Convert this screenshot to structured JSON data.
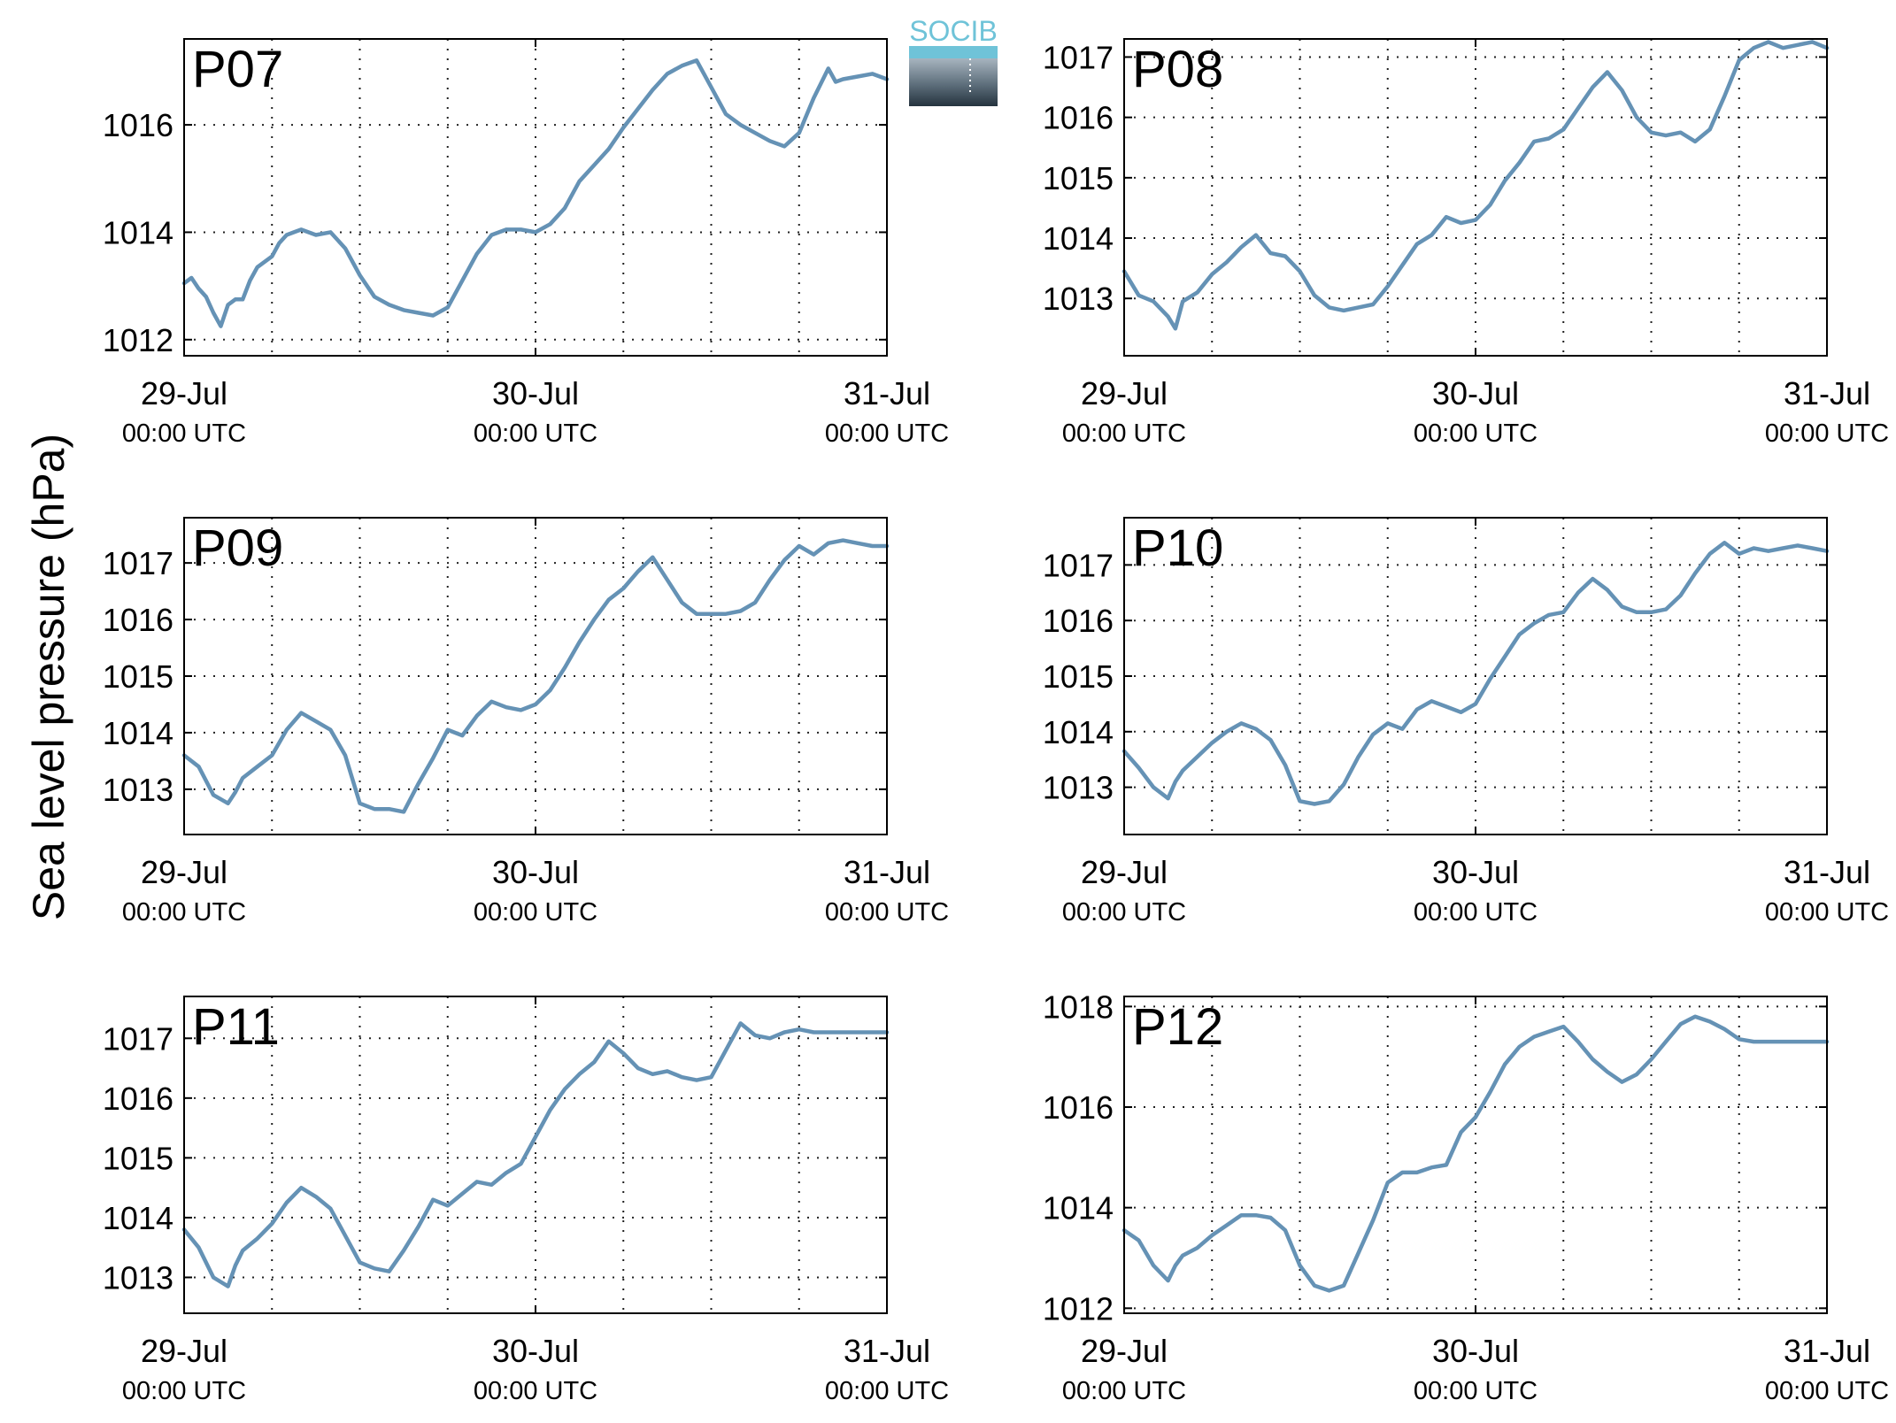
{
  "figure": {
    "ylabel": "Sea level pressure (hPa)",
    "line_color": "#6592b5",
    "station_label_color": "#ff0000"
  },
  "logo": {
    "text": "SOCIB",
    "text_color": "#6fc3d8"
  },
  "x_ticks": [
    {
      "date": "29-Jul",
      "time": "00:00 UTC",
      "hour": 0
    },
    {
      "date": "30-Jul",
      "time": "00:00 UTC",
      "hour": 24
    },
    {
      "date": "31-Jul",
      "time": "00:00 UTC",
      "hour": 48
    }
  ],
  "chart_data": [
    {
      "type": "line",
      "station": "P07",
      "xlim": [
        0,
        48
      ],
      "ylim": [
        1011.7,
        1017.6
      ],
      "yticks": [
        1012,
        1014,
        1016
      ],
      "x_minor_grid": [
        6,
        12,
        18,
        30,
        36,
        42
      ],
      "grid": true,
      "x": [
        0,
        0.5,
        1,
        1.5,
        2,
        2.5,
        3,
        3.5,
        4,
        4.5,
        5,
        5.5,
        6,
        6.5,
        7,
        7.5,
        8,
        9,
        10,
        11,
        12,
        13,
        14,
        15,
        16,
        17,
        18,
        19,
        20,
        21,
        22,
        23,
        24,
        25,
        26,
        27,
        28,
        29,
        30,
        31,
        32,
        33,
        34,
        35,
        36,
        37,
        38,
        39,
        40,
        41,
        42,
        43,
        44,
        44.5,
        45,
        46,
        47,
        48
      ],
      "values": [
        1013.05,
        1013.15,
        1012.95,
        1012.8,
        1012.5,
        1012.25,
        1012.65,
        1012.75,
        1012.75,
        1013.1,
        1013.35,
        1013.45,
        1013.55,
        1013.8,
        1013.95,
        1014.0,
        1014.05,
        1013.95,
        1014.0,
        1013.7,
        1013.2,
        1012.8,
        1012.65,
        1012.55,
        1012.5,
        1012.45,
        1012.6,
        1013.1,
        1013.6,
        1013.95,
        1014.05,
        1014.05,
        1014.0,
        1014.15,
        1014.45,
        1014.95,
        1015.25,
        1015.55,
        1015.95,
        1016.3,
        1016.65,
        1016.95,
        1017.1,
        1017.2,
        1016.7,
        1016.2,
        1016.0,
        1015.85,
        1015.7,
        1015.6,
        1015.85,
        1016.5,
        1017.05,
        1016.8,
        1016.85,
        1016.9,
        1016.95,
        1016.85
      ]
    },
    {
      "type": "line",
      "station": "P08",
      "xlim": [
        0,
        48
      ],
      "ylim": [
        1012.05,
        1017.3
      ],
      "yticks": [
        1013,
        1014,
        1015,
        1016,
        1017
      ],
      "x_minor_grid": [
        6,
        12,
        18,
        30,
        36,
        42
      ],
      "grid": true,
      "x": [
        0,
        1,
        2,
        3,
        3.5,
        4,
        5,
        6,
        7,
        8,
        9,
        10,
        11,
        12,
        13,
        14,
        15,
        16,
        17,
        18,
        19,
        20,
        21,
        22,
        23,
        24,
        25,
        26,
        27,
        28,
        29,
        30,
        31,
        32,
        33,
        34,
        35,
        36,
        37,
        38,
        39,
        40,
        41,
        42,
        43,
        44,
        45,
        46,
        47,
        48
      ],
      "values": [
        1013.45,
        1013.05,
        1012.95,
        1012.7,
        1012.5,
        1012.95,
        1013.1,
        1013.4,
        1013.6,
        1013.85,
        1014.05,
        1013.75,
        1013.7,
        1013.45,
        1013.05,
        1012.85,
        1012.8,
        1012.85,
        1012.9,
        1013.2,
        1013.55,
        1013.9,
        1014.05,
        1014.35,
        1014.25,
        1014.3,
        1014.55,
        1014.95,
        1015.25,
        1015.6,
        1015.65,
        1015.8,
        1016.15,
        1016.5,
        1016.75,
        1016.45,
        1016.0,
        1015.75,
        1015.7,
        1015.75,
        1015.6,
        1015.8,
        1016.35,
        1016.95,
        1017.15,
        1017.25,
        1017.15,
        1017.2,
        1017.25,
        1017.15
      ]
    },
    {
      "type": "line",
      "station": "P09",
      "xlim": [
        0,
        48
      ],
      "ylim": [
        1012.2,
        1017.8
      ],
      "yticks": [
        1013,
        1014,
        1015,
        1016,
        1017
      ],
      "x_minor_grid": [
        6,
        12,
        18,
        30,
        36,
        42
      ],
      "grid": true,
      "x": [
        0,
        1,
        2,
        3,
        3.5,
        4,
        5,
        6,
        7,
        8,
        9,
        10,
        11,
        12,
        13,
        14,
        15,
        16,
        17,
        18,
        19,
        20,
        21,
        22,
        23,
        24,
        25,
        26,
        27,
        28,
        29,
        30,
        31,
        32,
        33,
        34,
        35,
        36,
        37,
        38,
        39,
        40,
        41,
        42,
        43,
        44,
        45,
        46,
        47,
        48
      ],
      "values": [
        1013.6,
        1013.4,
        1012.9,
        1012.75,
        1012.95,
        1013.2,
        1013.4,
        1013.6,
        1014.05,
        1014.35,
        1014.2,
        1014.05,
        1013.6,
        1012.75,
        1012.65,
        1012.65,
        1012.6,
        1013.1,
        1013.55,
        1014.05,
        1013.95,
        1014.3,
        1014.55,
        1014.45,
        1014.4,
        1014.5,
        1014.75,
        1015.15,
        1015.6,
        1016.0,
        1016.35,
        1016.55,
        1016.85,
        1017.1,
        1016.7,
        1016.3,
        1016.1,
        1016.1,
        1016.1,
        1016.15,
        1016.3,
        1016.7,
        1017.05,
        1017.3,
        1017.15,
        1017.35,
        1017.4,
        1017.35,
        1017.3,
        1017.3
      ]
    },
    {
      "type": "line",
      "station": "P10",
      "xlim": [
        0,
        48
      ],
      "ylim": [
        1012.15,
        1017.85
      ],
      "yticks": [
        1013,
        1014,
        1015,
        1016,
        1017
      ],
      "x_minor_grid": [
        6,
        12,
        18,
        30,
        36,
        42
      ],
      "grid": true,
      "x": [
        0,
        1,
        2,
        3,
        3.5,
        4,
        5,
        6,
        7,
        8,
        9,
        10,
        11,
        12,
        13,
        14,
        15,
        16,
        17,
        18,
        19,
        20,
        21,
        22,
        23,
        24,
        25,
        26,
        27,
        28,
        29,
        30,
        31,
        32,
        33,
        34,
        35,
        36,
        37,
        38,
        39,
        40,
        41,
        42,
        43,
        44,
        45,
        46,
        47,
        48
      ],
      "values": [
        1013.65,
        1013.35,
        1013.0,
        1012.8,
        1013.1,
        1013.3,
        1013.55,
        1013.8,
        1014.0,
        1014.15,
        1014.05,
        1013.85,
        1013.4,
        1012.75,
        1012.7,
        1012.75,
        1013.05,
        1013.55,
        1013.95,
        1014.15,
        1014.05,
        1014.4,
        1014.55,
        1014.45,
        1014.35,
        1014.5,
        1014.95,
        1015.35,
        1015.75,
        1015.95,
        1016.1,
        1016.15,
        1016.5,
        1016.75,
        1016.55,
        1016.25,
        1016.15,
        1016.15,
        1016.2,
        1016.45,
        1016.85,
        1017.2,
        1017.4,
        1017.2,
        1017.3,
        1017.25,
        1017.3,
        1017.35,
        1017.3,
        1017.25
      ]
    },
    {
      "type": "line",
      "station": "P11",
      "xlim": [
        0,
        48
      ],
      "ylim": [
        1012.4,
        1017.7
      ],
      "yticks": [
        1013,
        1014,
        1015,
        1016,
        1017
      ],
      "x_minor_grid": [
        6,
        12,
        18,
        30,
        36,
        42
      ],
      "grid": true,
      "x": [
        0,
        1,
        2,
        3,
        3.5,
        4,
        5,
        6,
        7,
        8,
        9,
        10,
        11,
        12,
        13,
        14,
        15,
        16,
        17,
        18,
        19,
        20,
        21,
        22,
        23,
        24,
        25,
        26,
        27,
        28,
        29,
        30,
        31,
        32,
        33,
        34,
        35,
        36,
        37,
        38,
        39,
        40,
        41,
        42,
        43,
        44,
        45,
        46,
        47,
        48
      ],
      "values": [
        1013.8,
        1013.5,
        1013.0,
        1012.85,
        1013.2,
        1013.45,
        1013.65,
        1013.9,
        1014.25,
        1014.5,
        1014.35,
        1014.15,
        1013.7,
        1013.25,
        1013.15,
        1013.1,
        1013.45,
        1013.85,
        1014.3,
        1014.2,
        1014.4,
        1014.6,
        1014.55,
        1014.75,
        1014.9,
        1015.35,
        1015.8,
        1016.15,
        1016.4,
        1016.6,
        1016.95,
        1016.75,
        1016.5,
        1016.4,
        1016.45,
        1016.35,
        1016.3,
        1016.35,
        1016.8,
        1017.25,
        1017.05,
        1017.0,
        1017.1,
        1017.15,
        1017.1,
        1017.1,
        1017.1,
        1017.1,
        1017.1,
        1017.1
      ]
    },
    {
      "type": "line",
      "station": "P12",
      "xlim": [
        0,
        48
      ],
      "ylim": [
        1011.9,
        1018.2
      ],
      "yticks": [
        1012,
        1014,
        1016,
        1018
      ],
      "x_minor_grid": [
        6,
        12,
        18,
        30,
        36,
        42
      ],
      "grid": true,
      "x": [
        0,
        1,
        2,
        3,
        3.5,
        4,
        5,
        6,
        7,
        8,
        9,
        10,
        11,
        12,
        13,
        14,
        15,
        16,
        17,
        18,
        19,
        20,
        21,
        22,
        23,
        24,
        25,
        26,
        27,
        28,
        29,
        30,
        31,
        32,
        33,
        34,
        35,
        36,
        37,
        38,
        39,
        40,
        41,
        42,
        43,
        44,
        45,
        46,
        47,
        48
      ],
      "values": [
        1013.55,
        1013.35,
        1012.85,
        1012.55,
        1012.85,
        1013.05,
        1013.2,
        1013.45,
        1013.65,
        1013.85,
        1013.85,
        1013.8,
        1013.55,
        1012.85,
        1012.45,
        1012.35,
        1012.45,
        1013.1,
        1013.75,
        1014.5,
        1014.7,
        1014.7,
        1014.8,
        1014.85,
        1015.5,
        1015.8,
        1016.3,
        1016.85,
        1017.2,
        1017.4,
        1017.5,
        1017.6,
        1017.3,
        1016.95,
        1016.7,
        1016.5,
        1016.65,
        1016.95,
        1017.3,
        1017.65,
        1017.8,
        1017.7,
        1017.55,
        1017.35,
        1017.3,
        1017.3,
        1017.3,
        1017.3,
        1017.3,
        1017.3
      ]
    }
  ]
}
